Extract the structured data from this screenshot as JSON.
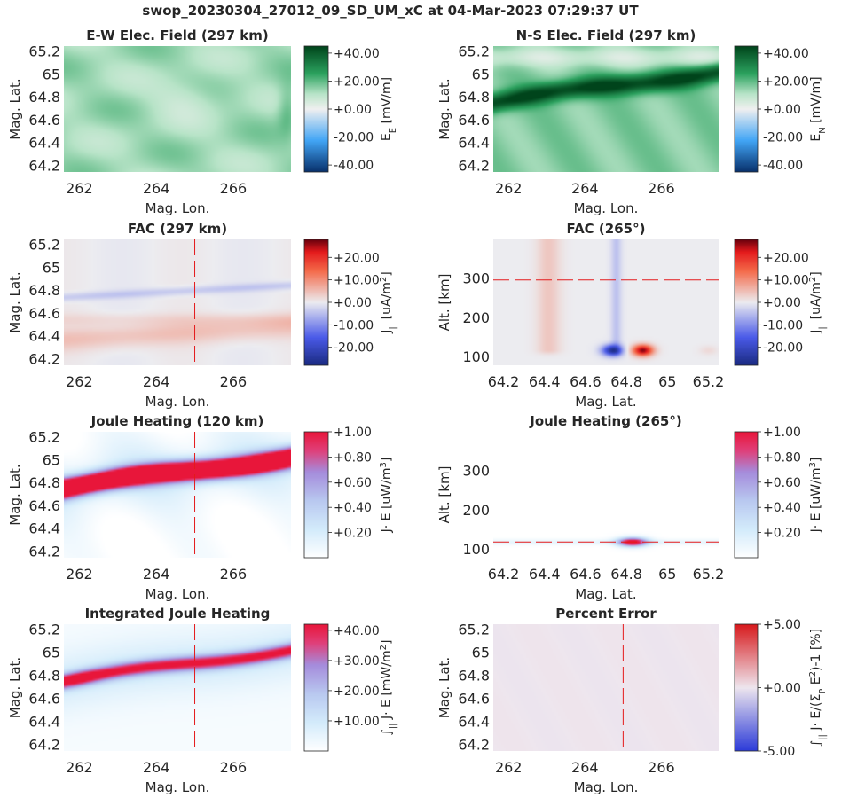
{
  "suptitle": "swop_20230304_27012_09_SD_UM_xC at 04-Mar-2023 07:29:37 UT",
  "colors": {
    "green_dark": "#00441b",
    "green_mid": "#2ca25f",
    "green_light": "#b8e4c8",
    "blue_dark": "#08306b",
    "blue_mid": "#42a5f5",
    "red_dark": "#67000d",
    "red_bright": "#e41a1c",
    "joule_low": "#ffffff",
    "joule_mid": "#a58cdc",
    "joule_high": "#e8163a",
    "guide_line": "#e41a1c"
  },
  "chart_data": [
    {
      "id": "ew",
      "type": "heatmap",
      "title": "E-W Elec. Field (297 km)",
      "xlabel": "Mag. Lon.",
      "ylabel": "Mag. Lat.",
      "xticks": [
        "262",
        "264",
        "266"
      ],
      "xtick_values": [
        262,
        264,
        266
      ],
      "yticks": [
        "64.2",
        "64.4",
        "64.6",
        "64.8",
        "65",
        "65.2"
      ],
      "ytick_values": [
        64.2,
        64.4,
        64.6,
        64.8,
        65.0,
        65.2
      ],
      "xlim": [
        261.6,
        267.5
      ],
      "ylim": [
        64.15,
        65.25
      ],
      "colormap": "diverging_green",
      "clim": [
        -45,
        45
      ],
      "colorbar_label": "E_E [mV/m]",
      "cbar_ticks": [
        "+40.00",
        "+20.00",
        "+0.00",
        "-20.00",
        "-40.00"
      ],
      "cbar_tick_values": [
        40,
        20,
        0,
        -20,
        -40
      ],
      "field": "ew",
      "guide_vline": null,
      "guide_hline": null
    },
    {
      "id": "ns",
      "type": "heatmap",
      "title": "N-S Elec. Field (297 km)",
      "xlabel": "Mag. Lon.",
      "ylabel": "Mag. Lat.",
      "xticks": [
        "262",
        "264",
        "266"
      ],
      "xtick_values": [
        262,
        264,
        266
      ],
      "yticks": [
        "64.2",
        "64.4",
        "64.6",
        "64.8",
        "65",
        "65.2"
      ],
      "ytick_values": [
        64.2,
        64.4,
        64.6,
        64.8,
        65.0,
        65.2
      ],
      "xlim": [
        261.6,
        267.5
      ],
      "ylim": [
        64.15,
        65.25
      ],
      "colormap": "diverging_green",
      "clim": [
        -45,
        45
      ],
      "colorbar_label": "E_N [mV/m]",
      "cbar_ticks": [
        "+40.00",
        "+20.00",
        "+0.00",
        "-20.00",
        "-40.00"
      ],
      "cbar_tick_values": [
        40,
        20,
        0,
        -20,
        -40
      ],
      "field": "ns",
      "guide_vline": null,
      "guide_hline": null
    },
    {
      "id": "fac_h",
      "type": "heatmap",
      "title": "FAC (297 km)",
      "xlabel": "Mag. Lon.",
      "ylabel": "Mag. Lat.",
      "xticks": [
        "262",
        "264",
        "266"
      ],
      "xtick_values": [
        262,
        264,
        266
      ],
      "yticks": [
        "64.2",
        "64.4",
        "64.6",
        "64.8",
        "65",
        "65.2"
      ],
      "ytick_values": [
        64.2,
        64.4,
        64.6,
        64.8,
        65.0,
        65.2
      ],
      "xlim": [
        261.6,
        267.5
      ],
      "ylim": [
        64.15,
        65.25
      ],
      "colormap": "diverging_red",
      "clim": [
        -28,
        28
      ],
      "colorbar_label": "J_|| [uA/m^2]",
      "cbar_ticks": [
        "+20.00",
        "+10.00",
        "+0.00",
        "-10.00",
        "-20.00"
      ],
      "cbar_tick_values": [
        20,
        10,
        0,
        -10,
        -20
      ],
      "field": "fac_h",
      "guide_vline": 265,
      "guide_hline": null
    },
    {
      "id": "fac_v",
      "type": "heatmap",
      "title": "FAC (265°)",
      "xlabel": "Mag. Lat.",
      "ylabel": "Alt. [km]",
      "xticks": [
        "64.2",
        "64.4",
        "64.6",
        "64.8",
        "65",
        "65.2"
      ],
      "xtick_values": [
        64.2,
        64.4,
        64.6,
        64.8,
        65.0,
        65.2
      ],
      "yticks": [
        "100",
        "200",
        "300"
      ],
      "ytick_values": [
        100,
        200,
        300
      ],
      "xlim": [
        64.15,
        65.25
      ],
      "ylim": [
        80,
        400
      ],
      "colormap": "diverging_red",
      "clim": [
        -28,
        28
      ],
      "colorbar_label": "J_|| [uA/m^2]",
      "cbar_ticks": [
        "+20.00",
        "+10.00",
        "+0.00",
        "-10.00",
        "-20.00"
      ],
      "cbar_tick_values": [
        20,
        10,
        0,
        -10,
        -20
      ],
      "field": "fac_v",
      "guide_vline": null,
      "guide_hline": 297
    },
    {
      "id": "jh_h",
      "type": "heatmap",
      "title": "Joule Heating (120 km)",
      "xlabel": "Mag. Lon.",
      "ylabel": "Mag. Lat.",
      "xticks": [
        "262",
        "264",
        "266"
      ],
      "xtick_values": [
        262,
        264,
        266
      ],
      "yticks": [
        "64.2",
        "64.4",
        "64.6",
        "64.8",
        "65",
        "65.2"
      ],
      "ytick_values": [
        64.2,
        64.4,
        64.6,
        64.8,
        65.0,
        65.2
      ],
      "xlim": [
        261.6,
        267.5
      ],
      "ylim": [
        64.15,
        65.25
      ],
      "colormap": "sequential_joule",
      "clim": [
        0,
        1.0
      ],
      "colorbar_label": "J· E [uW/m^3]",
      "cbar_ticks": [
        "+1.00",
        "+0.80",
        "+0.60",
        "+0.40",
        "+0.20"
      ],
      "cbar_tick_values": [
        1.0,
        0.8,
        0.6,
        0.4,
        0.2
      ],
      "field": "jh_h",
      "guide_vline": 265,
      "guide_hline": null
    },
    {
      "id": "jh_v",
      "type": "heatmap",
      "title": "Joule Heating (265°)",
      "xlabel": "Mag. Lat.",
      "ylabel": "Alt. [km]",
      "xticks": [
        "64.2",
        "64.4",
        "64.6",
        "64.8",
        "65",
        "65.2"
      ],
      "xtick_values": [
        64.2,
        64.4,
        64.6,
        64.8,
        65.0,
        65.2
      ],
      "yticks": [
        "100",
        "200",
        "300"
      ],
      "ytick_values": [
        100,
        200,
        300
      ],
      "xlim": [
        64.15,
        65.25
      ],
      "ylim": [
        80,
        400
      ],
      "colormap": "sequential_joule",
      "clim": [
        0,
        1.0
      ],
      "colorbar_label": "J· E [uW/m^3]",
      "cbar_ticks": [
        "+1.00",
        "+0.80",
        "+0.60",
        "+0.40",
        "+0.20"
      ],
      "cbar_tick_values": [
        1.0,
        0.8,
        0.6,
        0.4,
        0.2
      ],
      "field": "jh_v",
      "guide_vline": null,
      "guide_hline": 120
    },
    {
      "id": "ijh",
      "type": "heatmap",
      "title": "Integrated Joule Heating",
      "xlabel": "Mag. Lon.",
      "ylabel": "Mag. Lat.",
      "xticks": [
        "262",
        "264",
        "266"
      ],
      "xtick_values": [
        262,
        264,
        266
      ],
      "yticks": [
        "64.2",
        "64.4",
        "64.6",
        "64.8",
        "65",
        "65.2"
      ],
      "ytick_values": [
        64.2,
        64.4,
        64.6,
        64.8,
        65.0,
        65.2
      ],
      "xlim": [
        261.6,
        267.5
      ],
      "ylim": [
        64.15,
        65.25
      ],
      "colormap": "sequential_joule",
      "clim": [
        0,
        42
      ],
      "colorbar_label": "∫_|| J· E [mW/m^2]",
      "cbar_ticks": [
        "+40.00",
        "+30.00",
        "+20.00",
        "+10.00"
      ],
      "cbar_tick_values": [
        40,
        30,
        20,
        10
      ],
      "field": "ijh",
      "guide_vline": 265,
      "guide_hline": null
    },
    {
      "id": "perr",
      "type": "heatmap",
      "title": "Percent Error",
      "xlabel": "Mag. Lon.",
      "ylabel": "Mag. Lat.",
      "xticks": [
        "262",
        "264",
        "266"
      ],
      "xtick_values": [
        262,
        264,
        266
      ],
      "yticks": [
        "64.2",
        "64.4",
        "64.6",
        "64.8",
        "65",
        "65.2"
      ],
      "ytick_values": [
        64.2,
        64.4,
        64.6,
        64.8,
        65.0,
        65.2
      ],
      "xlim": [
        261.6,
        267.5
      ],
      "ylim": [
        64.15,
        65.25
      ],
      "colormap": "diverging_pe",
      "clim": [
        -5,
        5
      ],
      "colorbar_label": "∫_|| J· E/(Σ_P E^2)-1 [%]",
      "cbar_ticks": [
        "+5.00",
        "+0.00",
        "-5.00"
      ],
      "cbar_tick_values": [
        5,
        0,
        -5
      ],
      "field": "perr",
      "guide_vline": 265,
      "guide_hline": null
    }
  ]
}
